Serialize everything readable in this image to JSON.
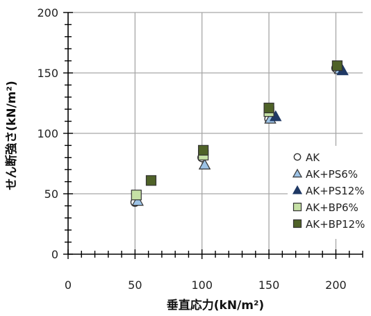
{
  "chart_data": {
    "type": "scatter",
    "xlabel": "垂直応力(kN/m²)",
    "ylabel": "せん断強さ(kN/m²)",
    "xlim": [
      0,
      220
    ],
    "ylim": [
      0,
      200
    ],
    "xticks": [
      0,
      50,
      100,
      150,
      200
    ],
    "yticks": [
      0,
      50,
      100,
      150,
      200
    ],
    "x_tick_labels": [
      "0",
      "50",
      "100",
      "150",
      "200"
    ],
    "y_tick_labels": [
      "0",
      "50",
      "100",
      "150",
      "200"
    ],
    "grid": true,
    "legend_position": "bottom-right",
    "series": [
      {
        "name": "AK",
        "marker": "circle",
        "fill": "#ffffff",
        "stroke": "#333333",
        "points": [
          {
            "x": 50,
            "y": 43
          },
          {
            "x": 100,
            "y": 80
          },
          {
            "x": 150,
            "y": 112
          },
          {
            "x": 200,
            "y": 154
          }
        ]
      },
      {
        "name": "AK+PS6%",
        "marker": "triangle",
        "fill": "#9dc3e6",
        "stroke": "#333333",
        "points": [
          {
            "x": 52,
            "y": 44
          },
          {
            "x": 102,
            "y": 74
          },
          {
            "x": 151,
            "y": 112
          },
          {
            "x": 203,
            "y": 153
          }
        ]
      },
      {
        "name": "AK+PS12%",
        "marker": "triangle",
        "fill": "#1f3864",
        "stroke": "#1f3864",
        "points": [
          {
            "x": 155,
            "y": 114
          },
          {
            "x": 205,
            "y": 152
          }
        ]
      },
      {
        "name": "AK+BP6%",
        "marker": "square",
        "fill": "#c5e0a5",
        "stroke": "#333333",
        "points": [
          {
            "x": 51,
            "y": 49
          },
          {
            "x": 101,
            "y": 82
          },
          {
            "x": 150,
            "y": 118
          }
        ]
      },
      {
        "name": "AK+BP12%",
        "marker": "square",
        "fill": "#4f6228",
        "stroke": "#333333",
        "points": [
          {
            "x": 62,
            "y": 61
          },
          {
            "x": 101,
            "y": 86
          },
          {
            "x": 150,
            "y": 121
          },
          {
            "x": 201,
            "y": 156
          }
        ]
      }
    ]
  }
}
